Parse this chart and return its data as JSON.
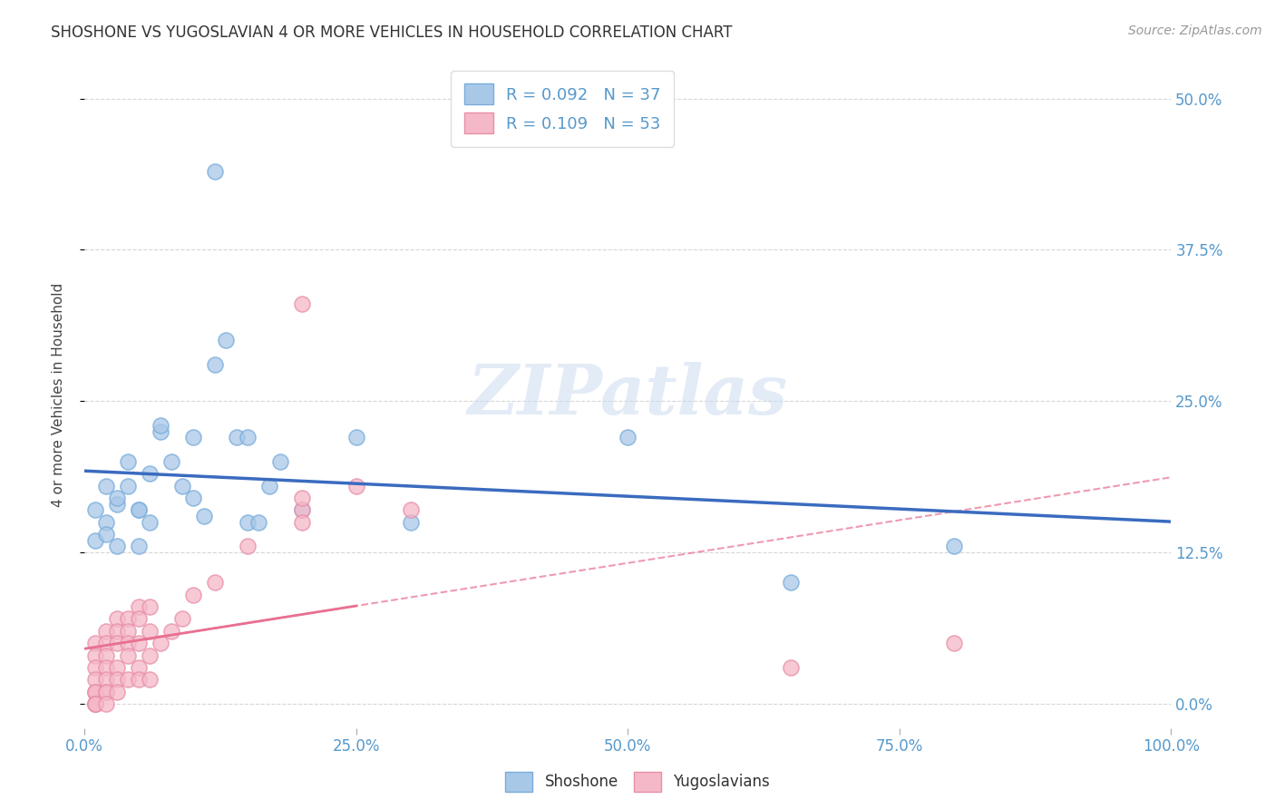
{
  "title": "SHOSHONE VS YUGOSLAVIAN 4 OR MORE VEHICLES IN HOUSEHOLD CORRELATION CHART",
  "source": "Source: ZipAtlas.com",
  "ylabel": "4 or more Vehicles in Household",
  "ytick_vals": [
    0,
    12.5,
    25.0,
    37.5,
    50.0
  ],
  "ytick_labels": [
    "0.0%",
    "12.5%",
    "25.0%",
    "37.5%",
    "50.0%"
  ],
  "xtick_vals": [
    0,
    25,
    50,
    75,
    100
  ],
  "xtick_labels": [
    "0.0%",
    "25.0%",
    "50.0%",
    "75.0%",
    "100.0%"
  ],
  "xlim": [
    0,
    100
  ],
  "ylim": [
    -2,
    53
  ],
  "legend_label1": "Shoshone",
  "legend_label2": "Yugoslavians",
  "r1": "0.092",
  "n1": "37",
  "r2": "0.109",
  "n2": "53",
  "color_blue_fill": "#a8c8e8",
  "color_blue_edge": "#7aaddb",
  "color_blue_line": "#3a6bbf",
  "color_pink_fill": "#f5b8c8",
  "color_pink_edge": "#e890a8",
  "color_pink_line": "#e87090",
  "color_tick": "#5599cc",
  "color_grid": "#cccccc",
  "background": "#ffffff",
  "shoshone_x": [
    2,
    3,
    4,
    5,
    6,
    7,
    8,
    9,
    10,
    11,
    12,
    13,
    14,
    15,
    16,
    17,
    18,
    1,
    1,
    2,
    3,
    4,
    5,
    6,
    3,
    7,
    10,
    12,
    15,
    20,
    25,
    30,
    50,
    65,
    80,
    2,
    5
  ],
  "shoshone_y": [
    15,
    16.5,
    18,
    16,
    19,
    22.5,
    20,
    18,
    17,
    15.5,
    44,
    30,
    22,
    15,
    15,
    18,
    20,
    16,
    13.5,
    14,
    17,
    20,
    16,
    15,
    13,
    23,
    22,
    28,
    22,
    16,
    22,
    15,
    22,
    10,
    13,
    18,
    13
  ],
  "yugoslav_x": [
    1,
    1,
    1,
    1,
    1,
    1,
    1,
    1,
    1,
    1,
    1,
    2,
    2,
    2,
    2,
    2,
    2,
    2,
    2,
    3,
    3,
    3,
    3,
    3,
    3,
    4,
    4,
    4,
    4,
    4,
    5,
    5,
    5,
    5,
    5,
    6,
    6,
    6,
    6,
    7,
    8,
    9,
    10,
    12,
    15,
    20,
    20,
    20,
    25,
    30,
    65,
    80,
    20
  ],
  "yugoslav_y": [
    5,
    4,
    3,
    2,
    1,
    1,
    1,
    0,
    0,
    0,
    0,
    6,
    5,
    4,
    3,
    2,
    1,
    1,
    0,
    7,
    6,
    5,
    3,
    2,
    1,
    7,
    6,
    5,
    4,
    2,
    8,
    7,
    5,
    3,
    2,
    8,
    6,
    4,
    2,
    5,
    6,
    7,
    9,
    10,
    13,
    16,
    15,
    17,
    18,
    16,
    3,
    5,
    33
  ],
  "watermark_text": "ZIPatlas",
  "watermark_fontsize": 55
}
